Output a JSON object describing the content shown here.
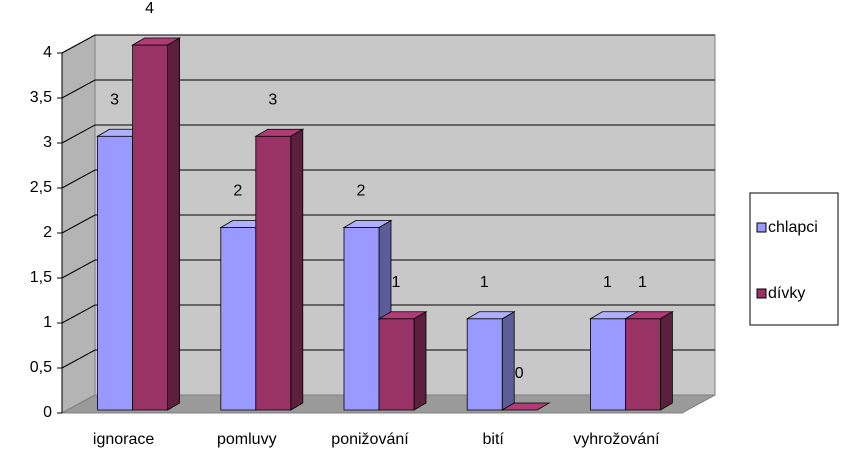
{
  "chart_data": {
    "type": "bar3d",
    "categories": [
      "ignorace",
      "pomluvy",
      "ponižování",
      "bití",
      "vyhrožování"
    ],
    "series": [
      {
        "name": "chlapci",
        "color": "#9999ff",
        "values": [
          3,
          2,
          2,
          1,
          1
        ]
      },
      {
        "name": "dívky",
        "color": "#993366",
        "values": [
          4,
          3,
          1,
          0,
          1
        ]
      }
    ],
    "ylim": [
      0,
      4
    ],
    "yticks": [
      0,
      {
        "value": 0.5,
        "label": "0,5"
      },
      1,
      {
        "value": 1.5,
        "label": "1,5"
      },
      2,
      {
        "value": 2.5,
        "label": "2,5"
      },
      3,
      {
        "value": 3.5,
        "label": "3,5"
      },
      4
    ],
    "grid": true,
    "legend": "right"
  }
}
